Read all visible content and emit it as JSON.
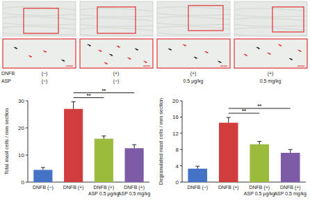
{
  "figure": {
    "rows": [
      {
        "label": "DNFB",
        "values": [
          "(−)",
          "(+)",
          "(+)",
          "(+)"
        ]
      },
      {
        "label": "ASP",
        "values": [
          "(−)",
          "(−)",
          "0.5 μg/kg",
          "0.5 mg/kg"
        ]
      }
    ]
  },
  "chart_data": [
    {
      "type": "bar",
      "y_label": "Total mast cells / mm section",
      "categories": [
        "DNFB (−)",
        "DNFB (+)",
        "DNFB (+) ASP 0.5 μg/kg",
        "DNFB (+) ASP 0.5 mg/kg"
      ],
      "values": [
        4.5,
        27,
        16,
        12.5
      ],
      "errors": [
        0.9,
        2.6,
        1.0,
        1.3
      ],
      "colors": [
        "#4472c4",
        "#d13c3c",
        "#9bbb3b",
        "#7e5ba6"
      ],
      "ylim": [
        0,
        30
      ],
      "yticks": [
        0,
        10,
        20,
        30
      ],
      "significance": [
        {
          "pair": [
            1,
            2
          ],
          "label": "**"
        },
        {
          "pair": [
            1,
            3
          ],
          "label": "**"
        }
      ]
    },
    {
      "type": "bar",
      "y_label": "Degranulated mast cells / mm section",
      "categories": [
        "DNFB (−)",
        "DNFB (+)",
        "DNFB (+) ASP 0.5 μg/kg",
        "DNFB (+) ASP 0.5 mg/kg"
      ],
      "values": [
        3.3,
        14.6,
        9.3,
        7.2
      ],
      "errors": [
        0.6,
        1.3,
        0.7,
        0.8
      ],
      "colors": [
        "#4472c4",
        "#d13c3c",
        "#9bbb3b",
        "#7e5ba6"
      ],
      "ylim": [
        0,
        20
      ],
      "yticks": [
        0,
        4,
        8,
        12,
        16,
        20
      ],
      "significance": [
        {
          "pair": [
            1,
            2
          ],
          "label": "**"
        },
        {
          "pair": [
            1,
            3
          ],
          "label": "**"
        }
      ]
    }
  ]
}
